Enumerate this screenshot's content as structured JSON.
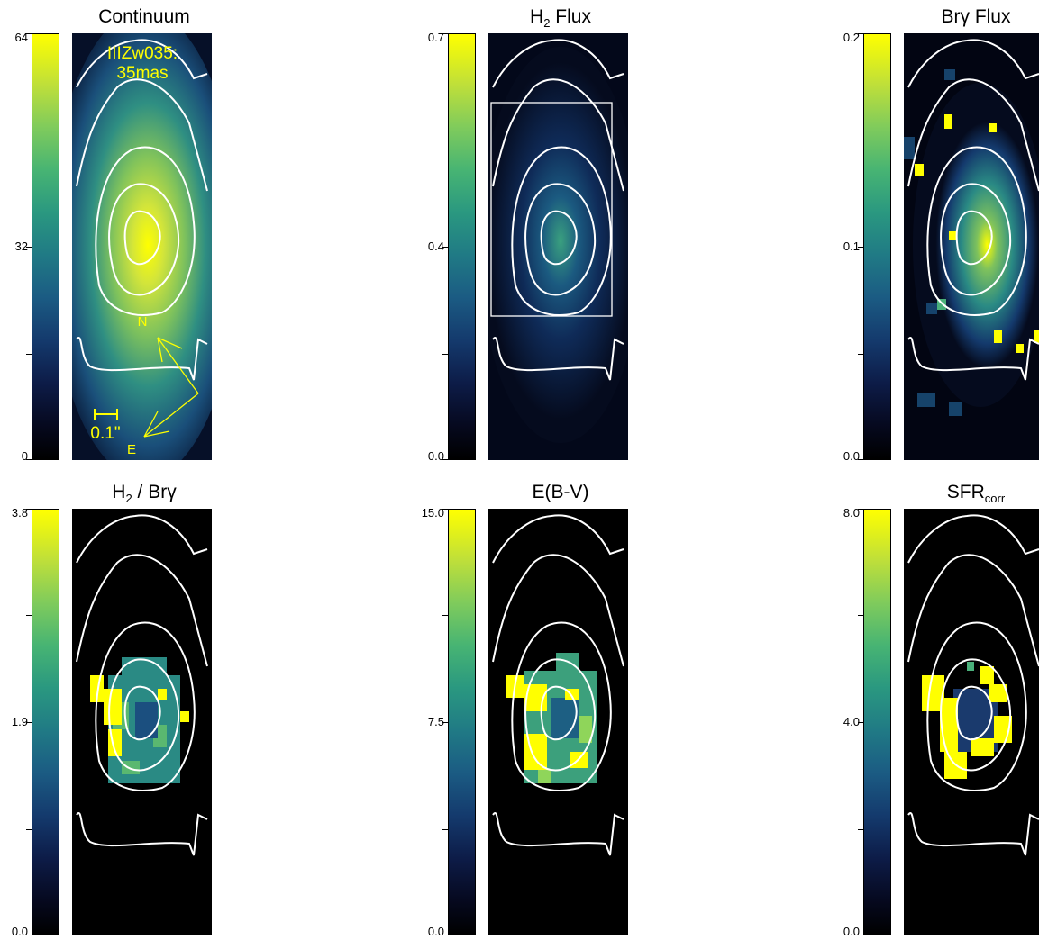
{
  "panels": [
    {
      "id": "continuum",
      "title": "Continuum",
      "cbar": {
        "max": "64",
        "mid": "32",
        "min": "0"
      }
    },
    {
      "id": "h2flux",
      "title_main": "H",
      "title_sub": "2",
      "title_rest": " Flux",
      "cbar": {
        "max": "0.7",
        "mid": "0.4",
        "min": "0.0"
      }
    },
    {
      "id": "brgflux",
      "title": "Brγ Flux",
      "cbar": {
        "max": "0.2",
        "mid": "0.1",
        "min": "0.0"
      }
    },
    {
      "id": "h2brg",
      "title_main": "H",
      "title_sub": "2",
      "title_rest": " / Brγ",
      "cbar": {
        "max": "3.8",
        "mid": "1.9",
        "min": "0.0"
      }
    },
    {
      "id": "ebv",
      "title": "E(B-V)",
      "cbar": {
        "max": "15.0",
        "mid": "7.5",
        "min": "0.0"
      }
    },
    {
      "id": "sfr",
      "title_main": "SFR",
      "title_sub": "corr",
      "title_rest": "",
      "cbar": {
        "max": "8.0",
        "mid": "4.0",
        "min": "0.0"
      }
    }
  ],
  "annotations": {
    "object_name": "IIIZw035:",
    "resolution": "35mas",
    "north": "N",
    "east": "E",
    "scale_label": "0.1\""
  },
  "colors": {
    "highlight": "#ffff00",
    "contour": "#ffffff",
    "background": "#000000"
  }
}
